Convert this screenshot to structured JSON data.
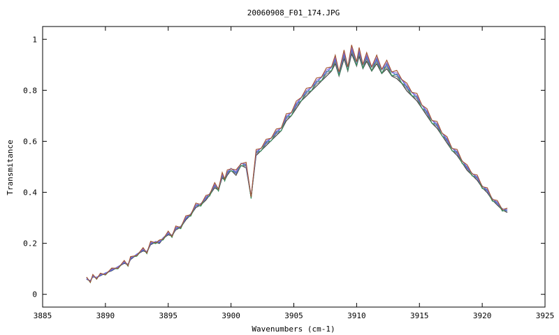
{
  "chart_data": {
    "type": "line",
    "title": "20060908_F01_174.JPG",
    "xlabel": "Wavenumbers (cm-1)",
    "ylabel": "Transmitance",
    "xlim": [
      3885,
      3925
    ],
    "ylim": [
      -0.05,
      1.05
    ],
    "x_ticks": [
      3885,
      3890,
      3895,
      3900,
      3905,
      3910,
      3915,
      3920,
      3925
    ],
    "y_ticks": [
      0,
      0.2,
      0.4,
      0.6,
      0.8,
      1
    ],
    "x_tick_labels": [
      "3885",
      "3890",
      "3895",
      "3900",
      "3905",
      "3910",
      "3915",
      "3920",
      "3925"
    ],
    "y_tick_labels": [
      "0",
      "0.2",
      "0.4",
      "0.6",
      "0.8",
      "1"
    ],
    "grid": false,
    "legend": "none",
    "series_colors": [
      "#3a3a3a",
      "#7f7f7f",
      "#2e8b57",
      "#4b69d8",
      "#9370db",
      "#a0522d"
    ],
    "series": [
      {
        "x": [
          3888.5,
          3888.8,
          3889.0,
          3889.3,
          3889.6,
          3890.0,
          3890.5,
          3891.0,
          3891.5,
          3891.8,
          3892.0,
          3892.5,
          3893.0,
          3893.3,
          3893.6,
          3894.0,
          3894.3,
          3894.6,
          3895.0,
          3895.3,
          3895.6,
          3896.0,
          3896.4,
          3896.8,
          3897.2,
          3897.6,
          3898.0,
          3898.3,
          3898.7,
          3899.0,
          3899.3,
          3899.5,
          3899.7,
          3900.0,
          3900.4,
          3900.8,
          3901.2,
          3901.6,
          3902.0,
          3902.4,
          3902.8,
          3903.2,
          3903.6,
          3904.0,
          3904.4,
          3904.8,
          3905.2,
          3905.6,
          3906.0,
          3906.4,
          3906.8,
          3907.2,
          3907.6,
          3908.0,
          3908.3,
          3908.6,
          3909.0,
          3909.3,
          3909.6,
          3910.0,
          3910.2,
          3910.5,
          3910.8,
          3911.2,
          3911.6,
          3912.0,
          3912.4,
          3912.8,
          3913.2,
          3913.6,
          3914.0,
          3914.4,
          3914.8,
          3915.2,
          3915.6,
          3916.0,
          3916.4,
          3916.8,
          3917.2,
          3917.6,
          3918.0,
          3918.4,
          3918.8,
          3919.2,
          3919.6,
          3920.0,
          3920.4,
          3920.8,
          3921.2,
          3921.6,
          3922.0
        ],
        "values": [
          0.06,
          0.055,
          0.07,
          0.068,
          0.075,
          0.085,
          0.095,
          0.11,
          0.125,
          0.12,
          0.14,
          0.16,
          0.175,
          0.17,
          0.2,
          0.21,
          0.205,
          0.225,
          0.24,
          0.235,
          0.26,
          0.27,
          0.3,
          0.32,
          0.35,
          0.36,
          0.38,
          0.4,
          0.43,
          0.42,
          0.47,
          0.46,
          0.48,
          0.5,
          0.48,
          0.52,
          0.51,
          0.39,
          0.56,
          0.58,
          0.6,
          0.62,
          0.64,
          0.66,
          0.7,
          0.72,
          0.75,
          0.78,
          0.8,
          0.82,
          0.84,
          0.86,
          0.88,
          0.9,
          0.93,
          0.88,
          0.95,
          0.9,
          0.97,
          0.92,
          0.96,
          0.91,
          0.94,
          0.9,
          0.93,
          0.89,
          0.91,
          0.88,
          0.87,
          0.85,
          0.82,
          0.8,
          0.78,
          0.75,
          0.72,
          0.69,
          0.67,
          0.64,
          0.61,
          0.58,
          0.56,
          0.53,
          0.5,
          0.48,
          0.46,
          0.43,
          0.41,
          0.38,
          0.36,
          0.34,
          0.33
        ]
      }
    ]
  }
}
